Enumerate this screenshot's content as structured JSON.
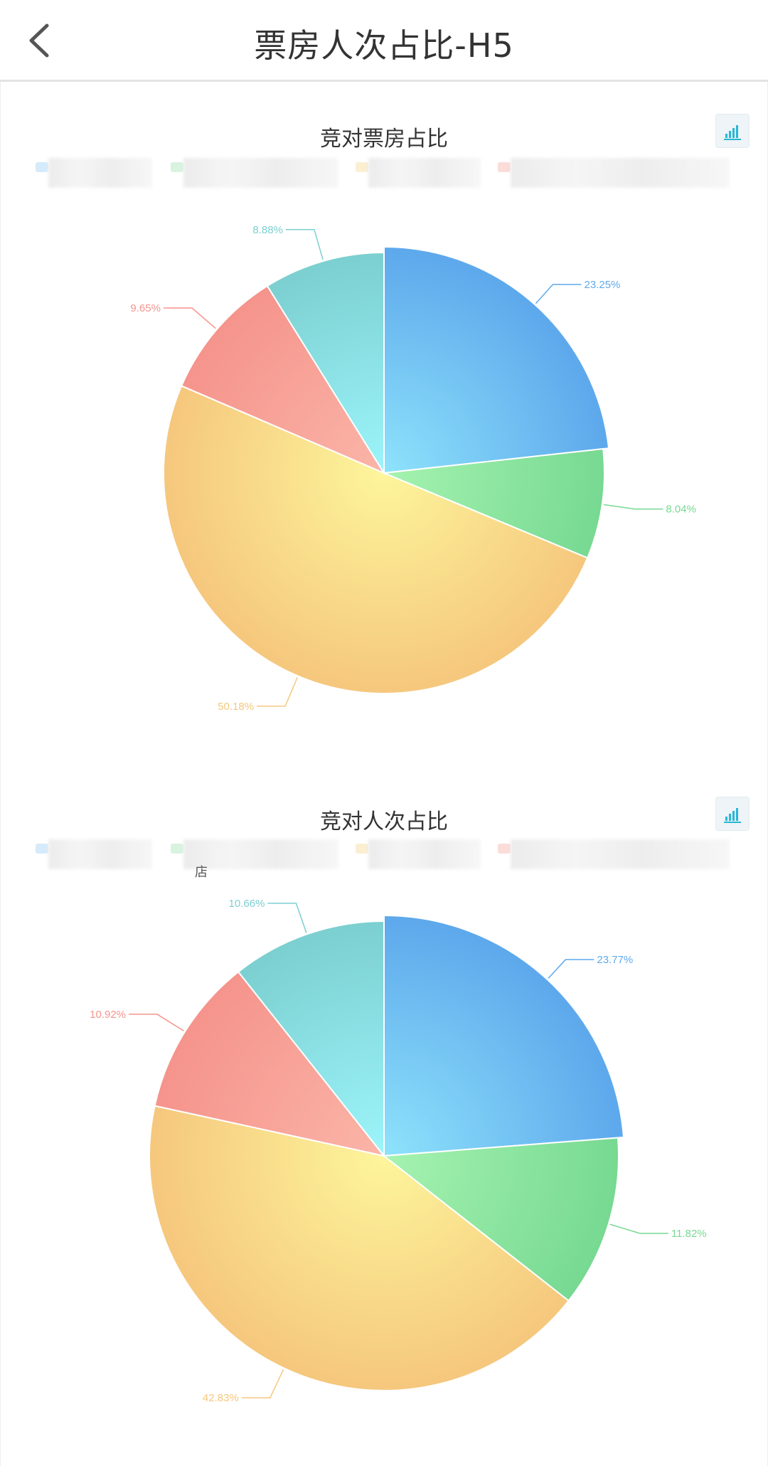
{
  "nav": {
    "title": "票房人次占比-H5",
    "back_icon": "chevron-left-icon"
  },
  "colors": {
    "blue": "#66b6ee",
    "green": "#86e3a0",
    "yellow": "#f8d98a",
    "red": "#f7a199",
    "teal": "#8ddcdc"
  },
  "legend": {
    "stray_text_2": "店"
  },
  "chart_data": [
    {
      "type": "pie",
      "title": "竞对票房占比",
      "slice_order": [
        "blue",
        "green",
        "yellow",
        "red",
        "teal"
      ],
      "values": [
        23.25,
        8.04,
        50.18,
        9.65,
        8.88
      ],
      "labels": [
        "23.25%",
        "8.04%",
        "50.18%",
        "9.65%",
        "8.88%"
      ],
      "toggle_icon": "bar-chart-icon",
      "legend_entries_visible": 4
    },
    {
      "type": "pie",
      "title": "竞对人次占比",
      "slice_order": [
        "blue",
        "green",
        "yellow",
        "red",
        "teal"
      ],
      "values": [
        23.77,
        11.82,
        42.83,
        10.92,
        10.66
      ],
      "labels": [
        "23.77%",
        "11.82%",
        "42.83%",
        "10.92%",
        "10.66%"
      ],
      "toggle_icon": "bar-chart-icon",
      "legend_entries_visible": 4
    }
  ]
}
